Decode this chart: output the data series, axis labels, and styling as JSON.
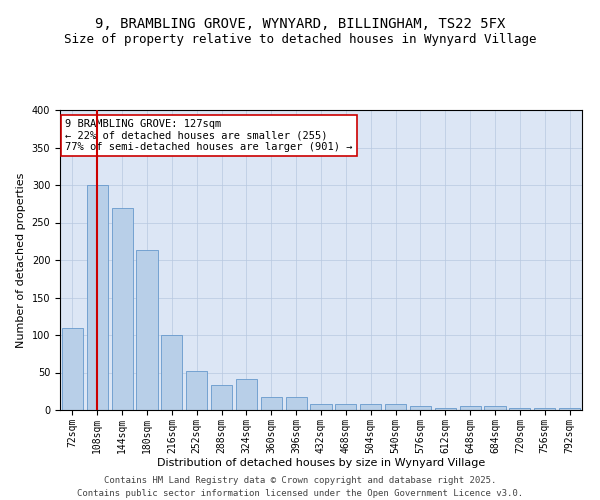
{
  "title": "9, BRAMBLING GROVE, WYNYARD, BILLINGHAM, TS22 5FX",
  "subtitle": "Size of property relative to detached houses in Wynyard Village",
  "xlabel": "Distribution of detached houses by size in Wynyard Village",
  "ylabel": "Number of detached properties",
  "bar_color": "#b8cfe8",
  "bar_edge_color": "#6699cc",
  "background_color": "#dce6f5",
  "categories": [
    "72sqm",
    "108sqm",
    "144sqm",
    "180sqm",
    "216sqm",
    "252sqm",
    "288sqm",
    "324sqm",
    "360sqm",
    "396sqm",
    "432sqm",
    "468sqm",
    "504sqm",
    "540sqm",
    "576sqm",
    "612sqm",
    "648sqm",
    "684sqm",
    "720sqm",
    "756sqm",
    "792sqm"
  ],
  "values": [
    110,
    300,
    270,
    213,
    100,
    52,
    33,
    42,
    18,
    18,
    8,
    8,
    8,
    8,
    5,
    3,
    5,
    5,
    3,
    3,
    3
  ],
  "vline_x": 1.0,
  "vline_color": "#cc0000",
  "annotation_text": "9 BRAMBLING GROVE: 127sqm\n← 22% of detached houses are smaller (255)\n77% of semi-detached houses are larger (901) →",
  "annotation_box_color": "#ffffff",
  "annotation_box_edge_color": "#cc0000",
  "ylim": [
    0,
    400
  ],
  "yticks": [
    0,
    50,
    100,
    150,
    200,
    250,
    300,
    350,
    400
  ],
  "footer": "Contains HM Land Registry data © Crown copyright and database right 2025.\nContains public sector information licensed under the Open Government Licence v3.0.",
  "title_fontsize": 10,
  "subtitle_fontsize": 9,
  "axis_label_fontsize": 8,
  "tick_fontsize": 7,
  "annotation_fontsize": 7.5,
  "footer_fontsize": 6.5
}
